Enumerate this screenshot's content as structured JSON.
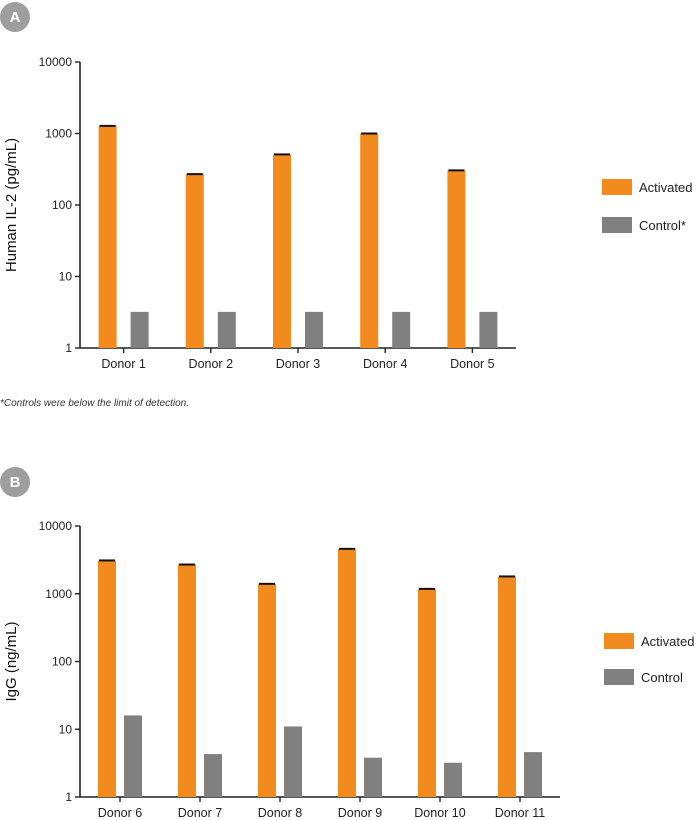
{
  "colors": {
    "activated": "#F28A1E",
    "control": "#808080",
    "badge": "#9E9E9E",
    "axis": "#222222"
  },
  "footnote": "*Controls were below the limit of detection.",
  "chart_data": [
    {
      "type": "bar",
      "panel": "A",
      "ylabel": "Human IL-2 (pg/mL)",
      "yscale": "log",
      "ylim": [
        1,
        10000
      ],
      "yticks": [
        "1",
        "10",
        "100",
        "1000",
        "10000"
      ],
      "categories": [
        "Donor 1",
        "Donor 2",
        "Donor 3",
        "Donor 4",
        "Donor 5"
      ],
      "series": [
        {
          "name": "Activated",
          "values": [
            1280,
            270,
            510,
            1000,
            305
          ]
        },
        {
          "name": "Control*",
          "values": [
            3.2,
            3.2,
            3.2,
            3.2,
            3.2
          ]
        }
      ],
      "legend": "right"
    },
    {
      "type": "bar",
      "panel": "B",
      "ylabel": "IgG (ng/mL)",
      "yscale": "log",
      "ylim": [
        1,
        10000
      ],
      "yticks": [
        "1",
        "10",
        "100",
        "1000",
        "10000"
      ],
      "categories": [
        "Donor 6",
        "Donor 7",
        "Donor 8",
        "Donor 9",
        "Donor 10",
        "Donor 11"
      ],
      "series": [
        {
          "name": "Activated",
          "values": [
            3100,
            2700,
            1400,
            4600,
            1180,
            1800
          ]
        },
        {
          "name": "Control",
          "values": [
            16,
            4.3,
            11,
            3.8,
            3.2,
            4.6
          ]
        }
      ],
      "legend": "right"
    }
  ]
}
